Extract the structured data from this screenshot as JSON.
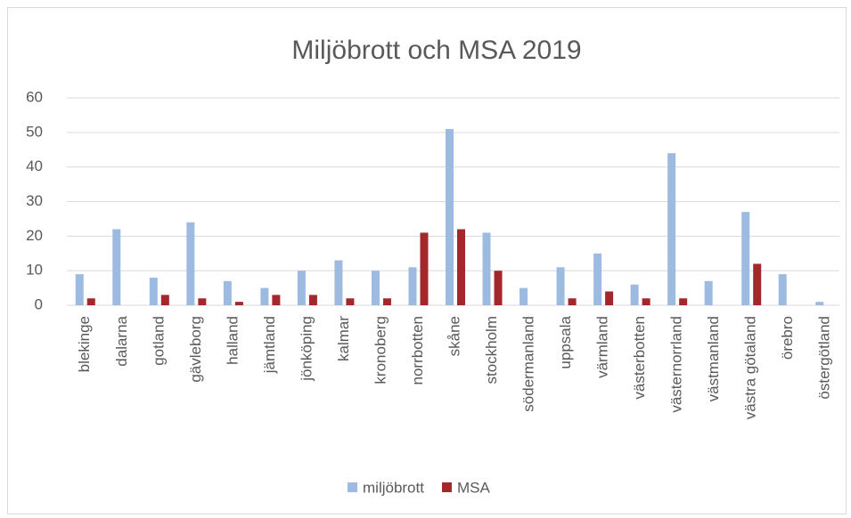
{
  "chart_data": {
    "type": "bar",
    "title": "Miljöbrott och MSA 2019",
    "categories": [
      "blekinge",
      "dalarna",
      "gotland",
      "gävleborg",
      "halland",
      "jämtland",
      "jönköping",
      "kalmar",
      "kronoberg",
      "norrbotten",
      "skåne",
      "stockholm",
      "södermanland",
      "uppsala",
      "värmland",
      "västerbotten",
      "västernorrland",
      "västmanland",
      "västra götaland",
      "örebro",
      "östergötland"
    ],
    "series": [
      {
        "name": "miljöbrott",
        "color": "#9dbbe0",
        "values": [
          9,
          22,
          8,
          24,
          7,
          5,
          10,
          13,
          10,
          11,
          51,
          21,
          5,
          11,
          15,
          6,
          44,
          7,
          27,
          9,
          1
        ]
      },
      {
        "name": "MSA",
        "color": "#a3282b",
        "values": [
          2,
          0,
          3,
          2,
          1,
          3,
          3,
          2,
          2,
          21,
          22,
          10,
          0,
          2,
          4,
          2,
          2,
          0,
          12,
          0,
          0
        ]
      }
    ],
    "ylim": [
      0,
      60
    ],
    "yticks": [
      0,
      10,
      20,
      30,
      40,
      50,
      60
    ],
    "grid": true,
    "legend": "bottom"
  }
}
